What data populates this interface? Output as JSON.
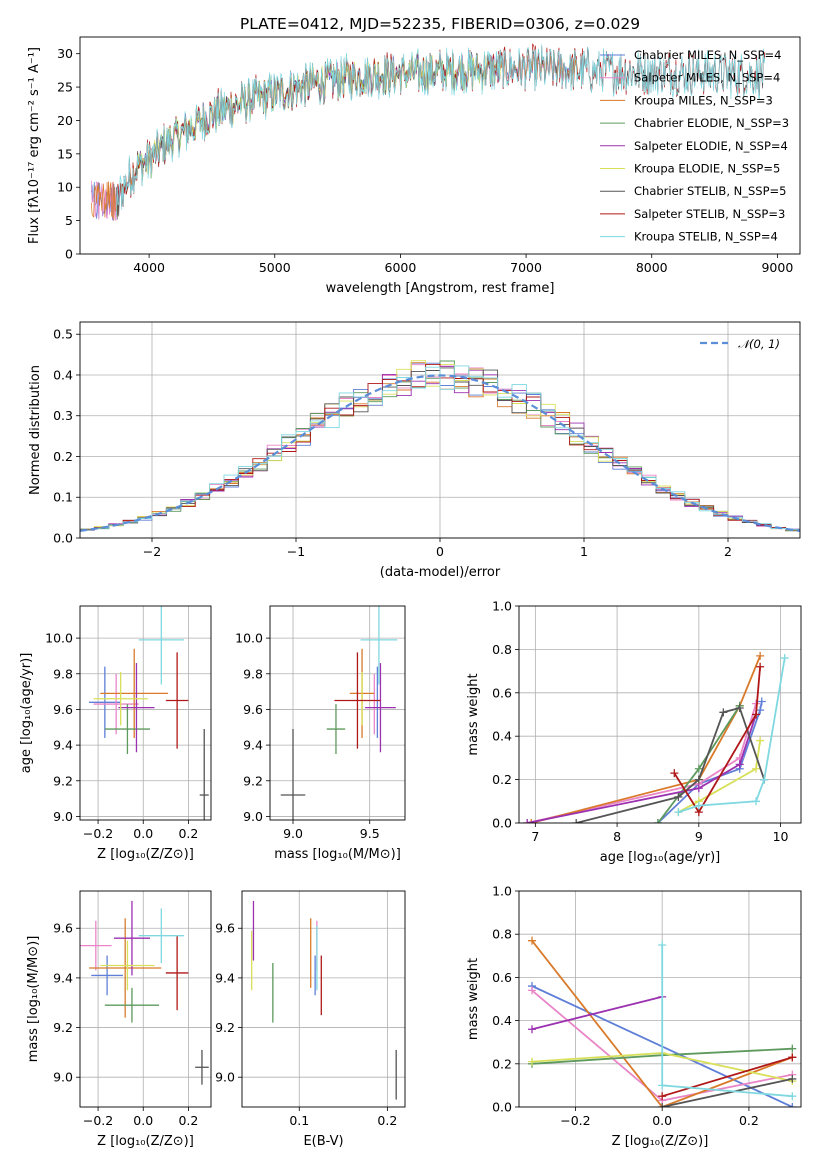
{
  "figure": {
    "title": "PLATE=0412, MJD=52235, FIBERID=0306, z=0.029"
  },
  "chart_data": [
    {
      "name": "spectrum",
      "type": "line",
      "xlabel": "wavelength [Angstrom, rest frame]",
      "ylabel": "Flux [fλ10⁻¹⁷ erg cm⁻² s⁻¹ A⁻¹]",
      "xlim": [
        3450,
        9180
      ],
      "ylim": [
        0,
        32.5
      ],
      "xticks": [
        4000,
        5000,
        6000,
        7000,
        8000,
        9000
      ],
      "yticks": [
        0,
        5,
        10,
        15,
        20,
        25,
        30
      ],
      "grid": false,
      "legend_position": "right",
      "continuum_approx": {
        "x": [
          3740,
          3800,
          3900,
          4000,
          4100,
          4300,
          4500,
          4800,
          5000,
          5300,
          5600,
          6000,
          6500,
          7000,
          7400,
          8000,
          8500,
          8900
        ],
        "y": [
          8,
          10,
          13,
          14,
          16,
          18.5,
          21,
          23,
          24,
          25.5,
          26.5,
          27,
          27.5,
          27.8,
          27.6,
          27.2,
          27,
          26.8
        ]
      },
      "series": [
        {
          "name": "Chabrier MILES, N_SSP=4",
          "color": "#5f7fd8",
          "xrange": [
            3540,
            7400
          ]
        },
        {
          "name": "Salpeter MILES, N_SSP=4",
          "color": "#e986c8",
          "xrange": [
            3540,
            7400
          ]
        },
        {
          "name": "Kroupa MILES, N_SSP=3",
          "color": "#d97a2a",
          "xrange": [
            3540,
            7420
          ]
        },
        {
          "name": "Chabrier ELODIE, N_SSP=3",
          "color": "#5e9a5e",
          "xrange": [
            3900,
            6800
          ]
        },
        {
          "name": "Salpeter ELODIE, N_SSP=4",
          "color": "#9b30b0",
          "xrange": [
            3900,
            6800
          ]
        },
        {
          "name": "Kroupa ELODIE, N_SSP=5",
          "color": "#d8e05a",
          "xrange": [
            3900,
            6800
          ]
        },
        {
          "name": "Chabrier STELIB, N_SSP=5",
          "color": "#555555",
          "xrange": [
            3740,
            8900
          ]
        },
        {
          "name": "Salpeter STELIB, N_SSP=3",
          "color": "#b01818",
          "xrange": [
            3740,
            8900
          ]
        },
        {
          "name": "Kroupa STELIB, N_SSP=4",
          "color": "#7fd8e0",
          "xrange": [
            3740,
            8900
          ]
        }
      ]
    },
    {
      "name": "residuals",
      "type": "line",
      "xlabel": "(data-model)/error",
      "ylabel": "Normed distribution",
      "xlim": [
        -2.5,
        2.5
      ],
      "ylim": [
        0,
        0.53
      ],
      "xticks": [
        -2,
        -1,
        0,
        1,
        2
      ],
      "yticks": [
        0.0,
        0.1,
        0.2,
        0.3,
        0.4,
        0.5
      ],
      "grid": true,
      "legend": [
        {
          "name": "𝒩(0, 1)",
          "color": "#5b8ed8",
          "style": "dashed"
        }
      ],
      "legend_position": "top-right",
      "gaussian": {
        "mu": 0,
        "sigma": 1
      }
    },
    {
      "name": "age-vs-Z",
      "type": "scatter",
      "xlabel": "Z [log₁₀(Z/Z⊙)]",
      "ylabel": "age  [log₁₀(age/yr)]",
      "xlim": [
        -0.28,
        0.3
      ],
      "ylim": [
        8.98,
        10.18
      ],
      "xticks": [
        -0.2,
        0.0,
        0.2
      ],
      "yticks": [
        9.0,
        9.2,
        9.4,
        9.6,
        9.8,
        10.0
      ],
      "grid": true,
      "points": [
        {
          "color": "#5f7fd8",
          "x": -0.17,
          "xe": 0.07,
          "y": 9.64,
          "ye": 0.2
        },
        {
          "color": "#e986c8",
          "x": -0.12,
          "xe": 0.1,
          "y": 9.63,
          "ye": 0.17
        },
        {
          "color": "#d97a2a",
          "x": -0.04,
          "xe": 0.15,
          "y": 9.69,
          "ye": 0.25
        },
        {
          "color": "#5e9a5e",
          "x": -0.07,
          "xe": 0.1,
          "y": 9.49,
          "ye": 0.14
        },
        {
          "color": "#9b30b0",
          "x": -0.03,
          "xe": 0.08,
          "y": 9.61,
          "ye": 0.25
        },
        {
          "color": "#d8e05a",
          "x": -0.1,
          "xe": 0.12,
          "y": 9.66,
          "ye": 0.15
        },
        {
          "color": "#555555",
          "x": 0.27,
          "xe": 0.02,
          "y": 9.12,
          "ye": 0.37
        },
        {
          "color": "#b01818",
          "x": 0.15,
          "xe": 0.05,
          "y": 9.65,
          "ye": 0.27
        },
        {
          "color": "#7fd8e0",
          "x": 0.08,
          "xe": 0.1,
          "y": 9.99,
          "ye": 0.25
        }
      ]
    },
    {
      "name": "age-vs-mass",
      "type": "scatter",
      "xlabel": "mass [log₁₀(M/M⊙)]",
      "ylabel": "",
      "xlim": [
        8.85,
        9.73
      ],
      "ylim": [
        8.98,
        10.18
      ],
      "xticks": [
        9.0,
        9.5
      ],
      "yticks": [
        9.0,
        9.2,
        9.4,
        9.6,
        9.8,
        10.0
      ],
      "grid": true,
      "points": [
        {
          "color": "#5f7fd8",
          "x": 9.55,
          "xe": 0.0,
          "y": 9.64,
          "ye": 0.2
        },
        {
          "color": "#e986c8",
          "x": 9.53,
          "xe": 0.0,
          "y": 9.63,
          "ye": 0.17
        },
        {
          "color": "#d97a2a",
          "x": 9.45,
          "xe": 0.08,
          "y": 9.69,
          "ye": 0.25
        },
        {
          "color": "#5e9a5e",
          "x": 9.28,
          "xe": 0.06,
          "y": 9.49,
          "ye": 0.14
        },
        {
          "color": "#9b30b0",
          "x": 9.57,
          "xe": 0.1,
          "y": 9.61,
          "ye": 0.25
        },
        {
          "color": "#d8e05a",
          "x": 9.45,
          "xe": 0.0,
          "y": 9.66,
          "ye": 0.15
        },
        {
          "color": "#555555",
          "x": 9.0,
          "xe": 0.08,
          "y": 9.12,
          "ye": 0.37
        },
        {
          "color": "#b01818",
          "x": 9.42,
          "xe": 0.15,
          "y": 9.65,
          "ye": 0.27
        },
        {
          "color": "#7fd8e0",
          "x": 9.56,
          "xe": 0.12,
          "y": 9.99,
          "ye": 0.25
        }
      ]
    },
    {
      "name": "mass-weight-vs-age",
      "type": "line",
      "xlabel": "age  [log₁₀(age/yr)]",
      "ylabel": "mass weight",
      "xlim": [
        6.8,
        10.25
      ],
      "ylim": [
        0,
        1.0
      ],
      "xticks": [
        7,
        8,
        9,
        10
      ],
      "yticks": [
        0.0,
        0.2,
        0.4,
        0.6,
        0.8,
        1.0
      ],
      "grid": true,
      "series": [
        {
          "color": "#5f7fd8",
          "x": [
            8.5,
            9.0,
            9.5,
            9.75,
            9.77
          ],
          "y": [
            0.0,
            0.18,
            0.25,
            0.52,
            0.56
          ]
        },
        {
          "color": "#e986c8",
          "x": [
            6.9,
            9.0,
            9.5,
            9.7
          ],
          "y": [
            0.0,
            0.18,
            0.3,
            0.55
          ]
        },
        {
          "color": "#d97a2a",
          "x": [
            6.95,
            9.0,
            9.5,
            9.75
          ],
          "y": [
            0.0,
            0.2,
            0.54,
            0.77
          ]
        },
        {
          "color": "#5e9a5e",
          "x": [
            8.5,
            9.0,
            9.5
          ],
          "y": [
            0.0,
            0.25,
            0.54
          ]
        },
        {
          "color": "#9b30b0",
          "x": [
            6.9,
            9.0,
            9.5,
            9.7
          ],
          "y": [
            0.0,
            0.16,
            0.27,
            0.5
          ]
        },
        {
          "color": "#d8e05a",
          "x": [
            8.75,
            9.0,
            9.7,
            9.75
          ],
          "y": [
            0.05,
            0.1,
            0.25,
            0.38
          ]
        },
        {
          "color": "#555555",
          "x": [
            7.5,
            8.75,
            9.0,
            9.3,
            9.5,
            9.8
          ],
          "y": [
            0.0,
            0.12,
            0.2,
            0.51,
            0.53,
            0.2
          ]
        },
        {
          "color": "#b01818",
          "x": [
            8.7,
            9.0,
            9.7,
            9.75
          ],
          "y": [
            0.23,
            0.05,
            0.5,
            0.72
          ]
        },
        {
          "color": "#7fd8e0",
          "x": [
            8.75,
            9.0,
            9.7,
            9.8,
            10.05
          ],
          "y": [
            0.05,
            0.08,
            0.1,
            0.2,
            0.76
          ]
        }
      ]
    },
    {
      "name": "mass-vs-Z",
      "type": "scatter",
      "xlabel": "Z [log₁₀(Z/Z⊙)]",
      "ylabel": "mass [log₁₀(M/M⊙)]",
      "xlim": [
        -0.28,
        0.3
      ],
      "ylim": [
        8.88,
        9.75
      ],
      "xticks": [
        -0.2,
        0.0,
        0.2
      ],
      "yticks": [
        9.0,
        9.2,
        9.4,
        9.6
      ],
      "grid": true,
      "points": [
        {
          "color": "#5f7fd8",
          "x": -0.16,
          "xe": 0.07,
          "y": 9.41,
          "ye": 0.08
        },
        {
          "color": "#e986c8",
          "x": -0.21,
          "xe": 0.07,
          "y": 9.53,
          "ye": 0.1
        },
        {
          "color": "#d97a2a",
          "x": -0.08,
          "xe": 0.16,
          "y": 9.44,
          "ye": 0.2
        },
        {
          "color": "#5e9a5e",
          "x": -0.05,
          "xe": 0.12,
          "y": 9.29,
          "ye": 0.07
        },
        {
          "color": "#9b30b0",
          "x": -0.05,
          "xe": 0.08,
          "y": 9.56,
          "ye": 0.15
        },
        {
          "color": "#d8e05a",
          "x": -0.07,
          "xe": 0.12,
          "y": 9.45,
          "ye": 0.1
        },
        {
          "color": "#555555",
          "x": 0.26,
          "xe": 0.03,
          "y": 9.04,
          "ye": 0.07
        },
        {
          "color": "#b01818",
          "x": 0.15,
          "xe": 0.05,
          "y": 9.42,
          "ye": 0.15
        },
        {
          "color": "#7fd8e0",
          "x": 0.08,
          "xe": 0.1,
          "y": 9.57,
          "ye": 0.11
        }
      ]
    },
    {
      "name": "mass-vs-EBV",
      "type": "scatter",
      "xlabel": "E(B-V)",
      "ylabel": "",
      "xlim": [
        0.035,
        0.22
      ],
      "ylim": [
        8.88,
        9.75
      ],
      "xticks": [
        0.1,
        0.2
      ],
      "yticks": [
        9.0,
        9.2,
        9.4,
        9.6
      ],
      "grid": true,
      "points": [
        {
          "color": "#5f7fd8",
          "x": 0.118,
          "xe": 0,
          "y": 9.41,
          "ye": 0.08
        },
        {
          "color": "#e986c8",
          "x": 0.12,
          "xe": 0,
          "y": 9.53,
          "ye": 0.1
        },
        {
          "color": "#d97a2a",
          "x": 0.113,
          "xe": 0,
          "y": 9.5,
          "ye": 0.14
        },
        {
          "color": "#5e9a5e",
          "x": 0.07,
          "xe": 0,
          "y": 9.34,
          "ye": 0.12
        },
        {
          "color": "#9b30b0",
          "x": 0.048,
          "xe": 0,
          "y": 9.59,
          "ye": 0.12
        },
        {
          "color": "#d8e05a",
          "x": 0.046,
          "xe": 0,
          "y": 9.47,
          "ye": 0.12
        },
        {
          "color": "#555555",
          "x": 0.21,
          "xe": 0,
          "y": 9.01,
          "ye": 0.1
        },
        {
          "color": "#b01818",
          "x": 0.125,
          "xe": 0,
          "y": 9.37,
          "ye": 0.12
        },
        {
          "color": "#7fd8e0",
          "x": 0.12,
          "xe": 0,
          "y": 9.48,
          "ye": 0.13
        }
      ]
    },
    {
      "name": "mass-weight-vs-Z",
      "type": "line",
      "xlabel": "Z [log₁₀(Z/Z⊙)]",
      "ylabel": "mass weight",
      "xlim": [
        -0.33,
        0.32
      ],
      "ylim": [
        0,
        1.0
      ],
      "xticks": [
        -0.2,
        0.0,
        0.2
      ],
      "yticks": [
        0.0,
        0.2,
        0.4,
        0.6,
        0.8,
        1.0
      ],
      "grid": true,
      "series": [
        {
          "color": "#5f7fd8",
          "x": [
            -0.3,
            0.3
          ],
          "y": [
            0.56,
            0.0
          ]
        },
        {
          "color": "#e986c8",
          "x": [
            -0.3,
            0.0,
            0.3
          ],
          "y": [
            0.54,
            0.03,
            0.15
          ]
        },
        {
          "color": "#d97a2a",
          "x": [
            -0.3,
            0.0,
            0.3
          ],
          "y": [
            0.77,
            0.0,
            0.23
          ]
        },
        {
          "color": "#5e9a5e",
          "x": [
            -0.3,
            0.0,
            0.3
          ],
          "y": [
            0.2,
            0.24,
            0.27
          ]
        },
        {
          "color": "#9b30b0",
          "x": [
            -0.3,
            0.0
          ],
          "y": [
            0.36,
            0.51
          ]
        },
        {
          "color": "#d8e05a",
          "x": [
            -0.3,
            0.0,
            0.3
          ],
          "y": [
            0.21,
            0.25,
            0.12
          ]
        },
        {
          "color": "#555555",
          "x": [
            0.0,
            0.3
          ],
          "y": [
            0.0,
            0.13
          ]
        },
        {
          "color": "#b01818",
          "x": [
            0.0,
            0.3
          ],
          "y": [
            0.05,
            0.23
          ]
        },
        {
          "color": "#7fd8e0",
          "x": [
            0.0,
            0.0,
            0.3
          ],
          "y": [
            0.75,
            0.1,
            0.05
          ]
        }
      ]
    }
  ]
}
